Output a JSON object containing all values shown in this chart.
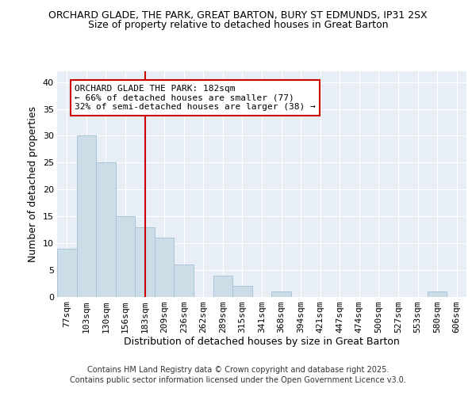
{
  "title1": "ORCHARD GLADE, THE PARK, GREAT BARTON, BURY ST EDMUNDS, IP31 2SX",
  "title2": "Size of property relative to detached houses in Great Barton",
  "xlabel": "Distribution of detached houses by size in Great Barton",
  "ylabel": "Number of detached properties",
  "categories": [
    "77sqm",
    "103sqm",
    "130sqm",
    "156sqm",
    "183sqm",
    "209sqm",
    "236sqm",
    "262sqm",
    "289sqm",
    "315sqm",
    "341sqm",
    "368sqm",
    "394sqm",
    "421sqm",
    "447sqm",
    "474sqm",
    "500sqm",
    "527sqm",
    "553sqm",
    "580sqm",
    "606sqm"
  ],
  "values": [
    9,
    30,
    25,
    15,
    13,
    11,
    6,
    0,
    4,
    2,
    0,
    1,
    0,
    0,
    0,
    0,
    0,
    0,
    0,
    1,
    0
  ],
  "bar_color": "#ccdde8",
  "bar_edge_color": "#aac4d8",
  "reference_line_x": 4,
  "reference_line_color": "#cc0000",
  "annotation_text": "ORCHARD GLADE THE PARK: 182sqm\n← 66% of detached houses are smaller (77)\n32% of semi-detached houses are larger (38) →",
  "annotation_box_color": "white",
  "annotation_box_edge_color": "#cc0000",
  "ylim": [
    0,
    42
  ],
  "yticks": [
    0,
    5,
    10,
    15,
    20,
    25,
    30,
    35,
    40
  ],
  "footer1": "Contains HM Land Registry data © Crown copyright and database right 2025.",
  "footer2": "Contains public sector information licensed under the Open Government Licence v3.0.",
  "fig_bg_color": "#ffffff",
  "plot_bg_color": "#e8eef5",
  "grid_color": "#ffffff",
  "title_fontsize": 9,
  "subtitle_fontsize": 9,
  "axis_label_fontsize": 9,
  "tick_fontsize": 8,
  "annotation_fontsize": 8,
  "footer_fontsize": 7
}
